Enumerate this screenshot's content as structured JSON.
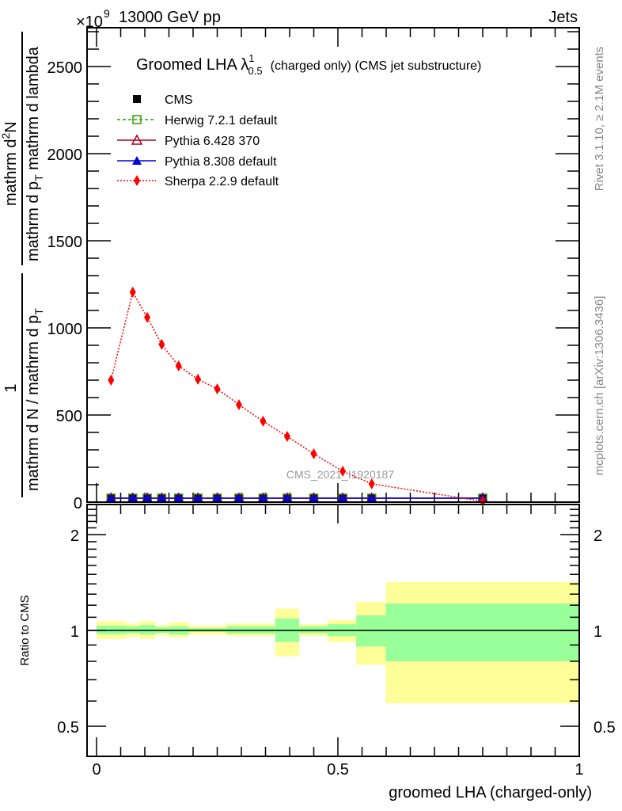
{
  "header": {
    "energy": "13000 GeV pp",
    "process": "Jets",
    "exponent_base": "×10",
    "exponent": "9"
  },
  "side_text": {
    "rivet": "Rivet 3.1.10, ≥ 2.1M events",
    "mcplots": "mcplots.cern.ch [arXiv:1306.3436]"
  },
  "watermark": "CMS_2021_I1920187",
  "colors": {
    "cms": "#000000",
    "herwig": "#339900",
    "pythia6": "#aa0022",
    "pythia8": "#0000dd",
    "sherpa": "#ff0000",
    "band_yellow": "#ffff99",
    "band_green": "#99ff99"
  },
  "chart_data": [
    {
      "type": "line",
      "title": "Groomed LHA λ",
      "title_sup": "1",
      "title_sub": "0.5",
      "title_rest": "(charged only) (CMS jet substructure)",
      "ylabel": {
        "left_num": "1",
        "left_den": "mathrm d N / mathrm d p",
        "left_den_sub": "T",
        "right_num": "mathrm d",
        "right_num_sup": "2",
        "right_num_end": "N",
        "right_den": "mathrm d p",
        "right_den_sub": "T",
        "right_den_end": " mathrm d lambda"
      },
      "xlim": [
        -0.02,
        1.0
      ],
      "ylim": [
        0,
        2720
      ],
      "yticks": [
        "0",
        "500",
        "1000",
        "1500",
        "2000",
        "2500"
      ],
      "x": [
        0.03,
        0.075,
        0.105,
        0.135,
        0.17,
        0.21,
        0.25,
        0.295,
        0.345,
        0.395,
        0.45,
        0.51,
        0.57,
        0.8
      ],
      "legend": {
        "placement": "top-left",
        "entries": [
          "CMS",
          "Herwig 7.2.1 default",
          "Pythia 6.428 370",
          "Pythia 8.308 default",
          "Sherpa 2.2.9 default"
        ]
      },
      "series": [
        {
          "name": "CMS",
          "values": [
            0,
            0,
            0,
            0,
            0,
            0,
            0,
            0,
            0,
            0,
            0,
            0,
            0,
            0
          ]
        },
        {
          "name": "Herwig 7.2.1 default",
          "values": [
            0,
            0,
            0,
            0,
            0,
            0,
            0,
            0,
            0,
            0,
            0,
            0,
            0,
            0
          ]
        },
        {
          "name": "Pythia 6.428 370",
          "values": [
            0,
            0,
            0,
            0,
            0,
            0,
            0,
            0,
            0,
            0,
            0,
            0,
            0,
            0
          ]
        },
        {
          "name": "Pythia 8.308 default",
          "values": [
            0,
            0,
            0,
            0,
            0,
            0,
            0,
            0,
            0,
            0,
            0,
            0,
            0,
            0
          ]
        },
        {
          "name": "Sherpa 2.2.9 default",
          "values": [
            700,
            1205,
            1060,
            905,
            782,
            705,
            650,
            559,
            464,
            377,
            277,
            177,
            105,
            5
          ]
        }
      ]
    },
    {
      "type": "area",
      "ylabel": "Ratio to CMS",
      "xlabel": "groomed LHA (charged-only)",
      "xticks": [
        "0",
        "0.5",
        "1"
      ],
      "yticks": [
        "0.5",
        "1",
        "2"
      ],
      "yscale": "log",
      "ylim": [
        0.4,
        2.5
      ],
      "bin_edges": [
        0,
        0.062,
        0.089,
        0.122,
        0.15,
        0.191,
        0.229,
        0.269,
        0.37,
        0.42,
        0.479,
        0.538,
        0.599,
        1.0
      ],
      "stat_band": {
        "up": [
          1.035,
          1.03,
          1.04,
          1.023,
          1.03,
          1.017,
          1.017,
          1.03,
          1.09,
          1.03,
          1.046,
          1.115,
          1.215
        ],
        "down": [
          0.972,
          0.98,
          0.97,
          0.983,
          0.97,
          0.99,
          0.99,
          0.977,
          0.92,
          0.98,
          0.96,
          0.89,
          0.8
        ]
      },
      "total_band": {
        "up": [
          1.07,
          1.05,
          1.07,
          1.04,
          1.06,
          1.035,
          1.035,
          1.05,
          1.17,
          1.046,
          1.08,
          1.23,
          1.42
        ],
        "down": [
          0.939,
          0.955,
          0.94,
          0.966,
          0.95,
          0.97,
          0.97,
          0.96,
          0.83,
          0.96,
          0.92,
          0.78,
          0.59
        ]
      }
    }
  ]
}
